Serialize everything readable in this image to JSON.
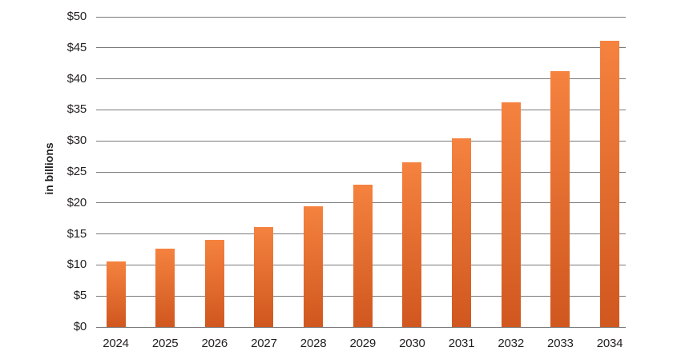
{
  "chart_data": {
    "type": "bar",
    "ylabel": "in billions",
    "categories": [
      "2024",
      "2025",
      "2026",
      "2027",
      "2028",
      "2029",
      "2030",
      "2031",
      "2032",
      "2033",
      "2034"
    ],
    "values": [
      10.6,
      12.6,
      14.1,
      16.1,
      19.4,
      23.0,
      26.6,
      30.4,
      36.2,
      41.3,
      46.1
    ],
    "y_ticks": [
      "$0",
      "$5",
      "$10",
      "$15",
      "$20",
      "$25",
      "$30",
      "$35",
      "$40",
      "$45",
      "$50"
    ],
    "y_tick_values": [
      0,
      5,
      10,
      15,
      20,
      25,
      30,
      35,
      40,
      45,
      50
    ],
    "ylim": [
      0,
      50
    ],
    "grid": "horizontal",
    "legend": "none",
    "colors": {
      "bar_gradient_top": "#f5823f",
      "bar_gradient_bottom": "#d0571f",
      "gridline": "#7a7a7a",
      "axis_text": "#231f20"
    }
  }
}
